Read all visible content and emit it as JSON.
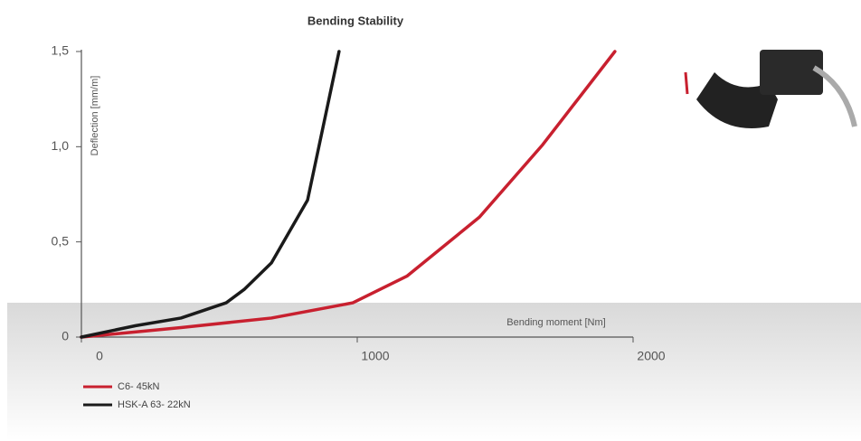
{
  "chart_data": {
    "type": "line",
    "title": "Bending Stability",
    "x_label": "Bending moment [Nm]",
    "y_label": "Deflection [mm/m]",
    "xlim": [
      0,
      2000
    ],
    "ylim": [
      0,
      1.5
    ],
    "xticks": [
      0,
      1000,
      2000
    ],
    "yticks": [
      0,
      {
        "value": 0.5,
        "label": "0,5"
      },
      {
        "value": 1.0,
        "label": "1,0"
      },
      {
        "value": 1.5,
        "label": "1,5"
      }
    ],
    "series": [
      {
        "name": "C6- 45kN",
        "color": "#c8202f",
        "x": [
          0,
          361,
          689,
          984,
          1180,
          1443,
          1672,
          1934
        ],
        "values": [
          0,
          0.05,
          0.1,
          0.18,
          0.32,
          0.63,
          1.01,
          1.5
        ]
      },
      {
        "name": "HSK-A 63- 22kN",
        "color": "#1a1a1a",
        "x": [
          0,
          197,
          361,
          525,
          590,
          689,
          820,
          934
        ],
        "values": [
          0,
          0.06,
          0.1,
          0.18,
          0.25,
          0.39,
          0.72,
          1.5
        ]
      }
    ]
  }
}
